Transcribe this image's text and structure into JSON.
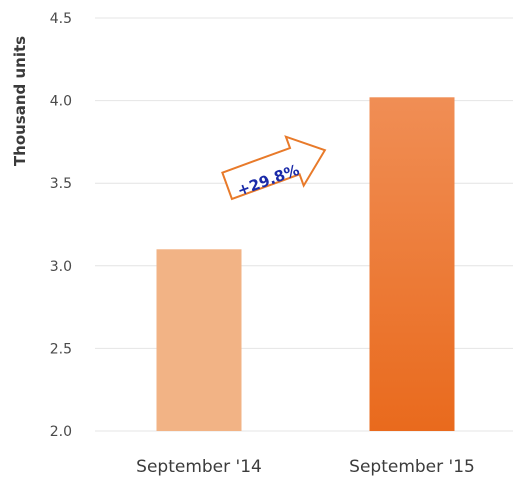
{
  "chart_data": {
    "type": "bar",
    "categories": [
      "September '14",
      "September '15"
    ],
    "values": [
      3.1,
      4.02
    ],
    "ylabel": "Thousand units",
    "xlabel": "",
    "ylim": [
      2.0,
      4.5
    ],
    "yticks": [
      "2.0",
      "2.5",
      "3.0",
      "3.5",
      "4.0",
      "4.5"
    ],
    "grid": true,
    "annotation": "+29.8%",
    "colors": {
      "bar_1": "#f2b385",
      "bar_2_top": "#f08e55",
      "bar_2_bottom": "#e96a1d",
      "grid": "#e4e4e4",
      "arrow_stroke": "#e87a2a",
      "annotation_text": "#1a2aa8"
    }
  }
}
